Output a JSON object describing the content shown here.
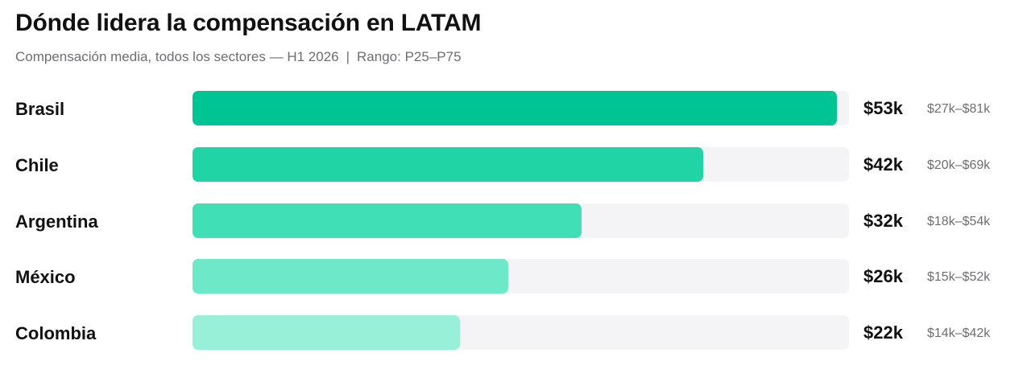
{
  "chart_data": {
    "type": "bar",
    "orientation": "horizontal",
    "title": "Dónde lidera la compensación en LATAM",
    "subtitle": "Compensación media, todos los sectores — H1 2026",
    "range_note": "Rango: P25–P75",
    "xlim": [
      0,
      54
    ],
    "grid": false,
    "categories": [
      "Brasil",
      "Chile",
      "Argentina",
      "México",
      "Colombia"
    ],
    "values": [
      53,
      42,
      32,
      26,
      22
    ],
    "value_labels": [
      "$53k",
      "$42k",
      "$32k",
      "$26k",
      "$22k"
    ],
    "range_labels": [
      "$27k–$81k",
      "$20k–$69k",
      "$18k–$54k",
      "$15k–$52k",
      "$14k–$42k"
    ],
    "colors": [
      "#00c493",
      "#20d4a6",
      "#40dfb6",
      "#6de8c8",
      "#99f0d9"
    ],
    "track_color": "#f4f4f6"
  }
}
